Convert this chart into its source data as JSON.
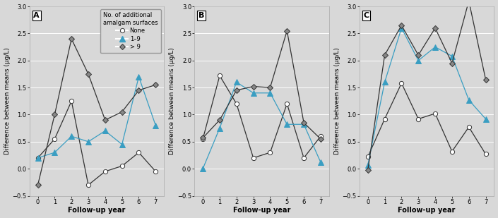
{
  "background_color": "#d8d8d8",
  "panel_bg": "#d8d8d8",
  "ylabel": "Difference between means (μg/L)",
  "xlabel": "Follow-up year",
  "ylim": [
    -0.5,
    3.0
  ],
  "yticks": [
    -0.5,
    0.0,
    0.5,
    1.0,
    1.5,
    2.0,
    2.5,
    3.0
  ],
  "xticks": [
    0,
    1,
    2,
    3,
    4,
    5,
    6,
    7
  ],
  "panels": [
    "A",
    "B",
    "C"
  ],
  "series": {
    "none": {
      "label": "None",
      "marker": "o",
      "markerfacecolor": "white",
      "markeredgecolor": "#333333",
      "color": "#333333",
      "markersize": 4.5,
      "linewidth": 0.9
    },
    "low": {
      "label": "1–9",
      "marker": "^",
      "markerfacecolor": "#3a9ec2",
      "markeredgecolor": "#3a9ec2",
      "color": "#3a9ec2",
      "markersize": 5.5,
      "linewidth": 0.9
    },
    "high": {
      "label": "> 9",
      "marker": "D",
      "markerfacecolor": "#888888",
      "markeredgecolor": "#333333",
      "color": "#333333",
      "markersize": 4.5,
      "linewidth": 0.9
    }
  },
  "data": {
    "A": {
      "none": [
        0.2,
        0.55,
        1.25,
        -0.3,
        -0.05,
        0.05,
        0.3,
        -0.05
      ],
      "low": [
        0.2,
        0.3,
        0.6,
        0.5,
        0.7,
        0.45,
        1.7,
        0.8
      ],
      "high": [
        -0.3,
        1.0,
        2.4,
        1.75,
        0.9,
        1.05,
        1.45,
        1.55
      ]
    },
    "B": {
      "none": [
        0.55,
        1.72,
        1.2,
        0.2,
        0.3,
        1.2,
        0.2,
        0.6
      ],
      "low": [
        0.0,
        0.75,
        1.6,
        1.4,
        1.4,
        0.82,
        0.82,
        0.12
      ],
      "high": [
        0.57,
        0.9,
        1.45,
        1.52,
        1.5,
        2.55,
        0.85,
        0.55
      ]
    },
    "C": {
      "none": [
        0.22,
        0.92,
        1.58,
        0.92,
        1.02,
        0.32,
        0.77,
        0.27
      ],
      "low": [
        0.07,
        1.6,
        2.6,
        2.0,
        2.25,
        2.08,
        1.27,
        0.92
      ],
      "high": [
        -0.02,
        2.1,
        2.65,
        2.1,
        2.6,
        1.95,
        3.1,
        1.65
      ]
    }
  },
  "legend_title": "No. of additional\namalgam surfaces",
  "tick_fontsize": 6,
  "label_fontsize": 7,
  "panel_label_fontsize": 8
}
